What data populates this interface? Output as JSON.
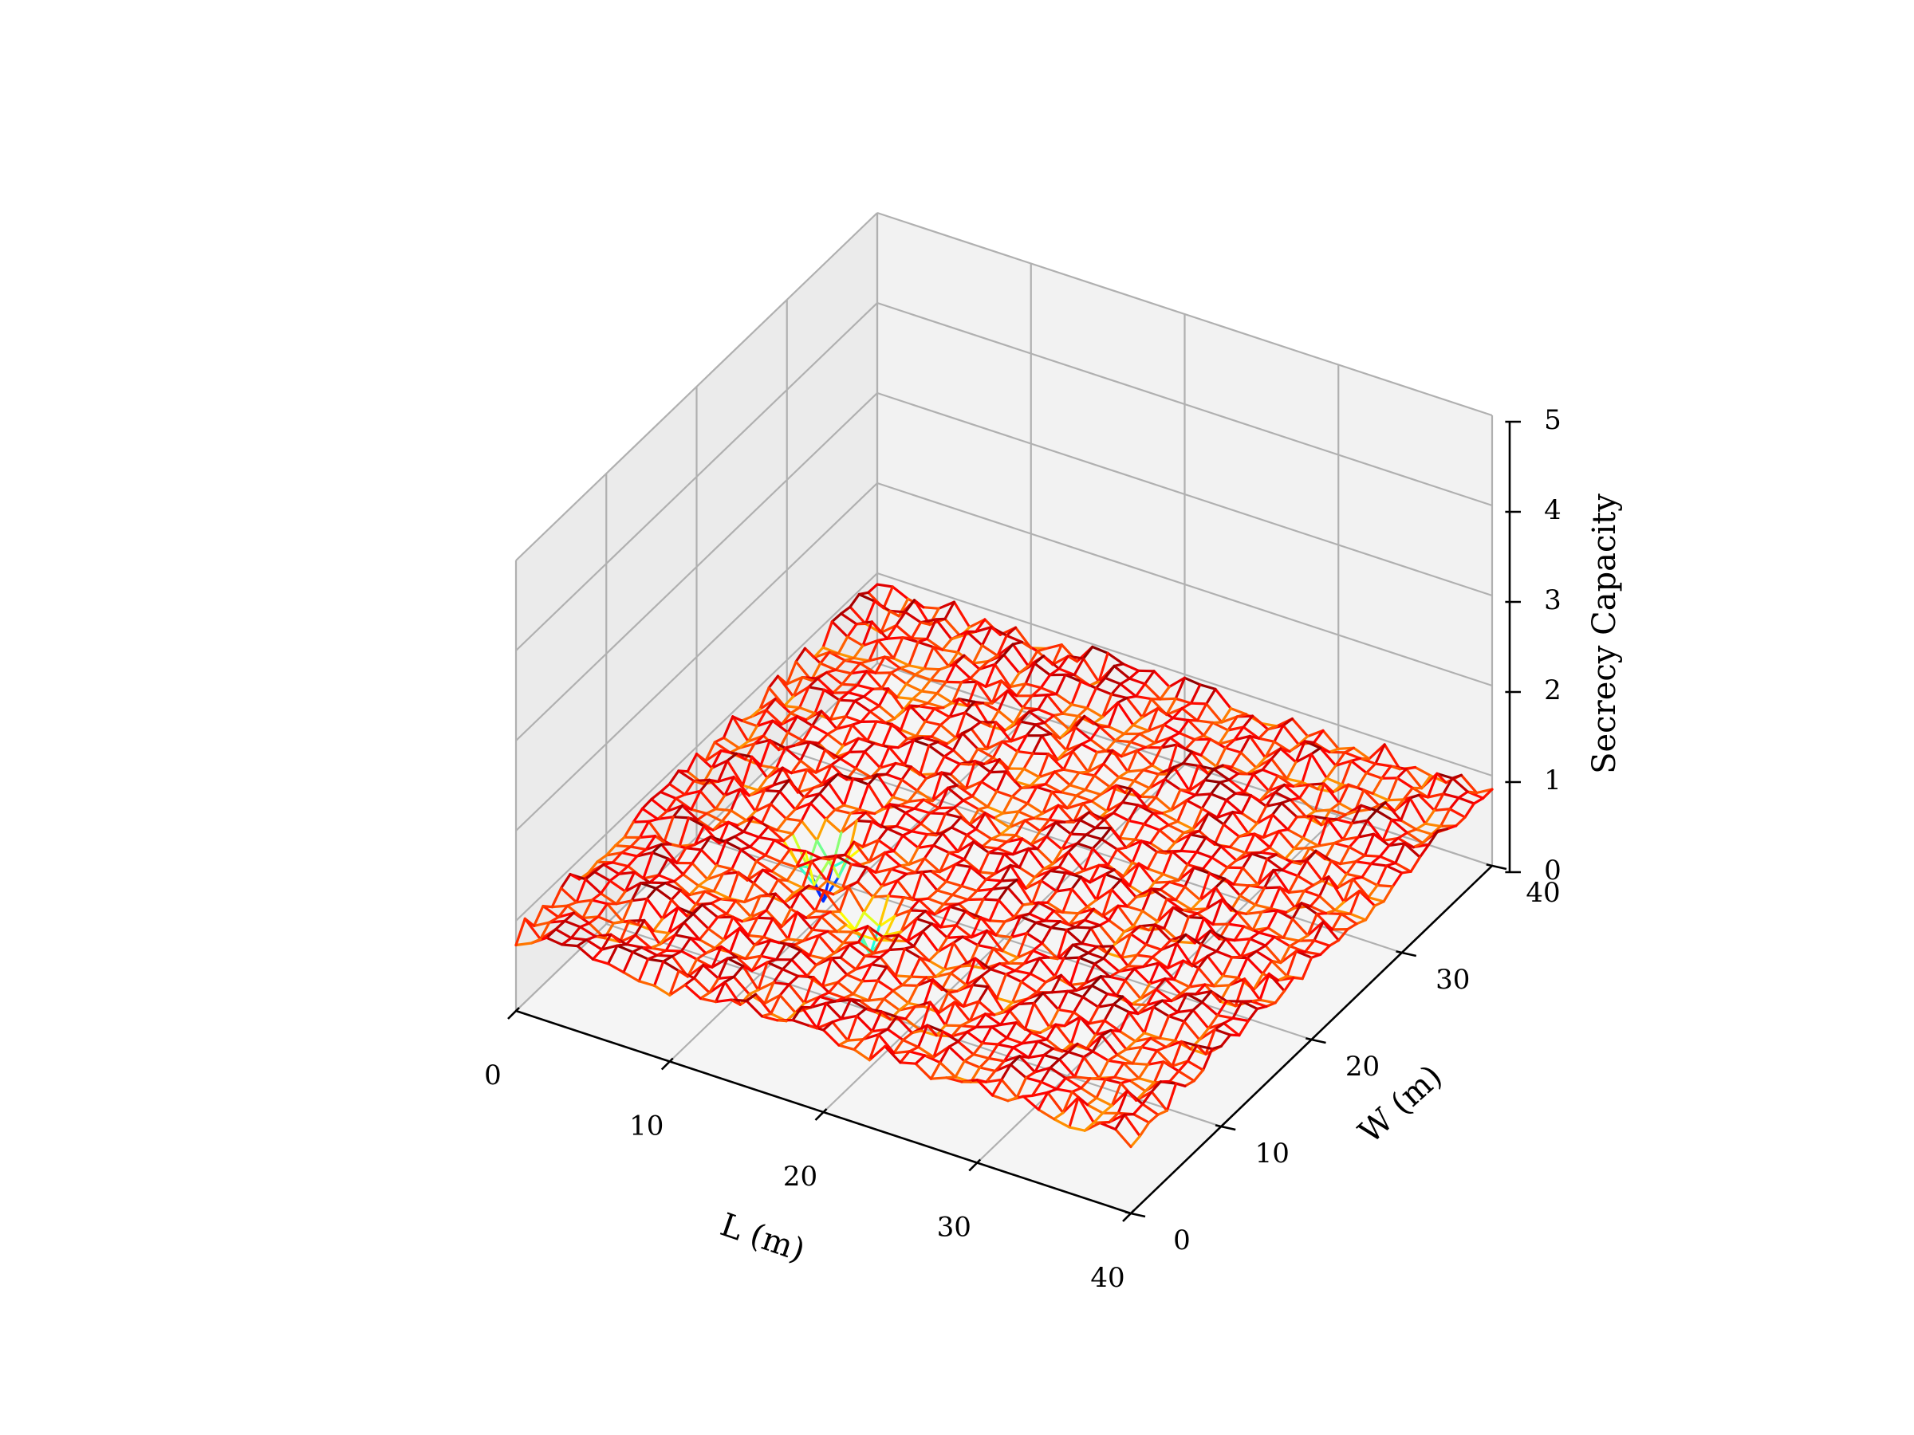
{
  "chart_data": {
    "type": "surface-wireframe",
    "xlabel": "L (m)",
    "ylabel": "W (m)",
    "zlabel": "Secrecy Capacity",
    "xlim": [
      0,
      40
    ],
    "ylim": [
      0,
      40
    ],
    "zlim": [
      0,
      5
    ],
    "xticks": [
      "0",
      "10",
      "20",
      "30",
      "40"
    ],
    "yticks": [
      "0",
      "10",
      "20",
      "30",
      "40"
    ],
    "zticks": [
      "0",
      "1",
      "2",
      "3",
      "4",
      "5"
    ],
    "grid": true,
    "colormap": "jet",
    "grid_resolution": 1,
    "surface_level": 0.85,
    "noise_amplitude": 0.12,
    "dips": [
      {
        "x": 10,
        "y": 17,
        "z": 0.2
      },
      {
        "x": 16,
        "y": 12,
        "z": 0.35
      }
    ]
  },
  "colors": {
    "pane_back": "#f2f2f2",
    "pane_side": "#ebebeb",
    "pane_floor": "#f5f5f5",
    "grid": "#b0b0b0",
    "axis": "#000000"
  }
}
